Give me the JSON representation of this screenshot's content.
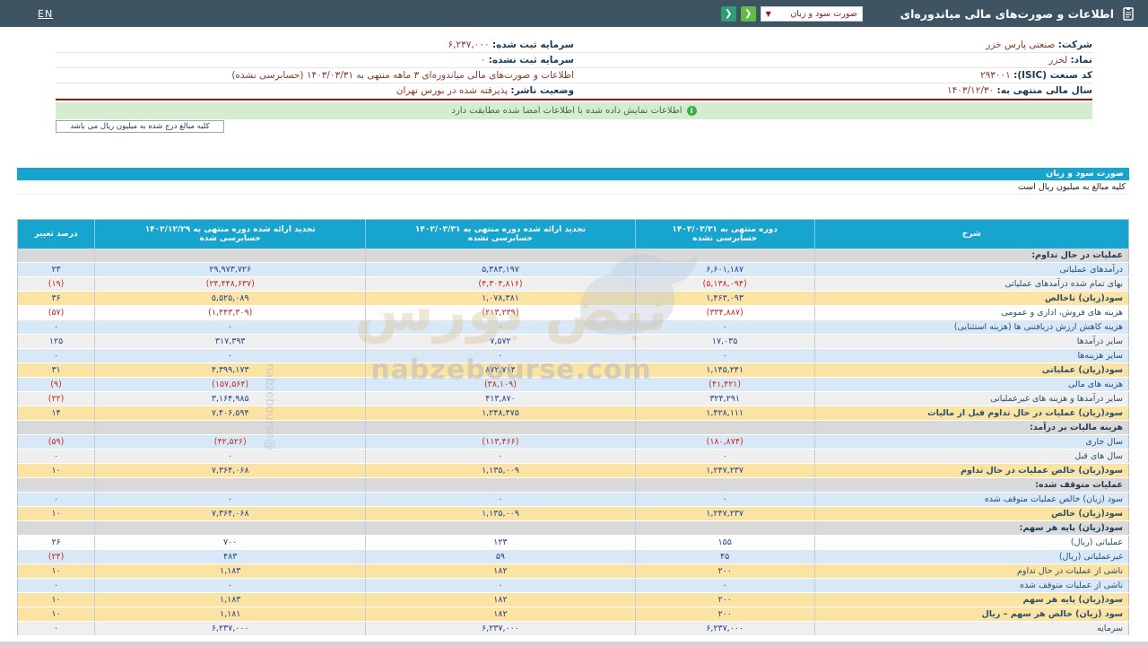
{
  "topbar": {
    "title": "اطلاعات و صورت‌های مالی میاندوره‌ای",
    "selector_value": "صورت سود و زیان",
    "en_label": "EN"
  },
  "company_info": {
    "right": [
      {
        "label": "شرکت:",
        "value": "صنعتی پارس خزر"
      },
      {
        "label": "نماد:",
        "value": "لخزر"
      },
      {
        "label": "کد صنعت (ISIC):",
        "value": "۲۹۳۰۰۱"
      },
      {
        "label": "سال مالی منتهی به:",
        "value": "۱۴۰۳/۱۲/۳۰"
      }
    ],
    "left": [
      {
        "label": "سرمایه ثبت شده:",
        "value": "۶,۲۳۷,۰۰۰"
      },
      {
        "label": "سرمایه ثبت نشده:",
        "value": "۰"
      },
      {
        "label": "",
        "value": "اطلاعات و صورت‌های مالی میاندوره‌ای ۳ ماهه منتهی به ۱۴۰۳/۰۳/۳۱ (حسابرسی نشده)"
      },
      {
        "label": "وضعیت ناشر:",
        "value": "پذیرفته شده در بورس تهران"
      }
    ]
  },
  "banner": {
    "text": "اطلاعات نمایش داده شده با اطلاعات امضا شده مطابقت دارد",
    "icon": "info-icon"
  },
  "amounts_box": "کلیه مبالغ درج شده به میلیون ریال می باشد",
  "statement": {
    "title": "صورت سود و زیان",
    "units_note": "کلیه مبالغ به میلیون ریال است"
  },
  "table": {
    "headers": {
      "description": "شرح",
      "current": {
        "line1": "دوره منتهی به ۱۴۰۳/۰۳/۳۱",
        "line2": "حسابرسی نشده"
      },
      "prior_period": {
        "line1": "تجدید ارائه شده دوره منتهی به ۱۴۰۲/۰۳/۳۱",
        "line2": "حسابرسی نشده"
      },
      "prior_year": {
        "line1": "تجدید ارائه شده دوره منتهی به ۱۴۰۲/۱۲/۲۹",
        "line2": "حسابرسی شده"
      },
      "change": "درصد تغییر"
    },
    "rows": [
      {
        "label": "عملیات در حال تداوم:",
        "cur": "",
        "prev": "",
        "year": "",
        "pct": "",
        "bg": "section"
      },
      {
        "label": "درآمدهای عملیاتی",
        "cur": "۶,۶۰۱,۱۸۷",
        "prev": "۵,۳۸۳,۱۹۷",
        "year": "۲۹,۹۷۳,۷۲۶",
        "pct": "۲۳",
        "bg": "blue"
      },
      {
        "label": "بهای تمام شده درآمدهای عملیاتی",
        "cur": "(۵,۱۳۸,۰۹۴)",
        "prev": "(۴,۳۰۴,۸۱۶)",
        "year": "(۲۴,۴۴۸,۶۳۷)",
        "pct": "(۱۹)",
        "bg": "gray"
      },
      {
        "label": "سود(زیان) ناخالص",
        "cur": "۱,۴۶۳,۰۹۳",
        "prev": "۱,۰۷۸,۳۸۱",
        "year": "۵,۵۲۵,۰۸۹",
        "pct": "۳۶",
        "bg": "orange",
        "bold": true
      },
      {
        "label": "هزینه های فروش، اداری و عمومی",
        "cur": "(۳۳۴,۸۸۷)",
        "prev": "(۲۱۳,۲۳۹)",
        "year": "(۱,۴۴۳,۳۰۹)",
        "pct": "(۵۷)",
        "bg": "white"
      },
      {
        "label": "هزینه کاهش ارزش دریافتنی ها (هزینه استثنایی)",
        "cur": "۰",
        "prev": "۰",
        "year": "۰",
        "pct": "۰",
        "bg": "blue"
      },
      {
        "label": "سایر درآمدها",
        "cur": "۱۷,۰۳۵",
        "prev": "۷,۵۷۲",
        "year": "۳۱۷,۳۹۳",
        "pct": "۱۲۵",
        "bg": "gray"
      },
      {
        "label": "سایر هزینه‌ها",
        "cur": "۰",
        "prev": "۰",
        "year": "۰",
        "pct": "۰",
        "bg": "blue"
      },
      {
        "label": "سود(زیان) عملیاتی",
        "cur": "۱,۱۴۵,۲۴۱",
        "prev": "۸۷۲,۷۱۴",
        "year": "۴,۳۹۹,۱۷۳",
        "pct": "۳۱",
        "bg": "orange",
        "bold": true
      },
      {
        "label": "هزینه های مالی",
        "cur": "(۴۱,۴۲۱)",
        "prev": "(۳۸,۱۰۹)",
        "year": "(۱۵۷,۵۶۴)",
        "pct": "(۹)",
        "bg": "blue"
      },
      {
        "label": "سایر درآمدها و هزینه های غیرعملیاتی",
        "cur": "۳۲۴,۲۹۱",
        "prev": "۴۱۳,۸۷۰",
        "year": "۳,۱۶۴,۹۸۵",
        "pct": "(۲۲)",
        "bg": "gray"
      },
      {
        "label": "سود(زیان) عملیات در حال تداوم قبل از مالیات",
        "cur": "۱,۴۲۸,۱۱۱",
        "prev": "۱,۲۴۸,۴۷۵",
        "year": "۷,۴۰۶,۵۹۴",
        "pct": "۱۴",
        "bg": "orange",
        "bold": true
      },
      {
        "label": "هزینه مالیات بر درآمد:",
        "cur": "",
        "prev": "",
        "year": "",
        "pct": "",
        "bg": "section"
      },
      {
        "label": "سال جاری",
        "cur": "(۱۸۰,۸۷۴)",
        "prev": "(۱۱۳,۴۶۶)",
        "year": "(۴۲,۵۲۶)",
        "pct": "(۵۹)",
        "bg": "blue"
      },
      {
        "label": "سال های قبل",
        "cur": "۰",
        "prev": "۰",
        "year": "۰",
        "pct": "۰",
        "bg": "gray"
      },
      {
        "label": "سود(زیان) خالص عملیات در حال تداوم",
        "cur": "۱,۲۴۷,۲۳۷",
        "prev": "۱,۱۳۵,۰۰۹",
        "year": "۷,۳۶۴,۰۶۸",
        "pct": "۱۰",
        "bg": "orange",
        "bold": true
      },
      {
        "label": "عملیات متوقف شده:",
        "cur": "",
        "prev": "",
        "year": "",
        "pct": "",
        "bg": "section"
      },
      {
        "label": "سود (زیان) خالص عملیات متوقف شده",
        "cur": "۰",
        "prev": "۰",
        "year": "۰",
        "pct": "۰",
        "bg": "blue"
      },
      {
        "label": "سود(زیان) خالص",
        "cur": "۱,۲۴۷,۲۳۷",
        "prev": "۱,۱۳۵,۰۰۹",
        "year": "۷,۳۶۴,۰۶۸",
        "pct": "۱۰",
        "bg": "orange",
        "bold": true
      },
      {
        "label": "سود(زیان) پایه هر سهم:",
        "cur": "",
        "prev": "",
        "year": "",
        "pct": "",
        "bg": "section"
      },
      {
        "label": "عملیاتی (ریال)",
        "cur": "۱۵۵",
        "prev": "۱۲۳",
        "year": "۷۰۰",
        "pct": "۲۶",
        "bg": "white"
      },
      {
        "label": "غیرعملیاتی (ریال)",
        "cur": "۴۵",
        "prev": "۵۹",
        "year": "۴۸۳",
        "pct": "(۲۴)",
        "bg": "blue"
      },
      {
        "label": "ناشی از عملیات در حال تداوم",
        "cur": "۲۰۰",
        "prev": "۱۸۲",
        "year": "۱,۱۸۳",
        "pct": "۱۰",
        "bg": "orange"
      },
      {
        "label": "ناشی از عملیات متوقف شده",
        "cur": "۰",
        "prev": "۰",
        "year": "۰",
        "pct": "۰",
        "bg": "blue"
      },
      {
        "label": "سود(زیان) پایه هر سهم",
        "cur": "۲۰۰",
        "prev": "۱۸۲",
        "year": "۱,۱۸۳",
        "pct": "۱۰",
        "bg": "orange",
        "bold": true
      },
      {
        "label": "سود (زیان) خالص هر سهم – ریال",
        "cur": "۲۰۰",
        "prev": "۱۸۲",
        "year": "۱,۱۸۱",
        "pct": "۱۰",
        "bg": "orange",
        "bold": true
      },
      {
        "label": "سرمایه",
        "cur": "۶,۲۳۷,۰۰۰",
        "prev": "۶,۲۳۷,۰۰۰",
        "year": "۶,۲۳۷,۰۰۰",
        "pct": "۰",
        "bg": "gray"
      }
    ]
  },
  "watermark": {
    "fa": "نبض بورس",
    "en": "nabzebourse.com",
    "handle": "@nabzebourse"
  },
  "colors": {
    "accent_teal": "#17a4cf",
    "topbar": "#3e5463",
    "row_highlight": "#fbe3a3",
    "row_blue": "#d8e8f7",
    "row_gray": "#efeff0",
    "section_row": "#d9d9d9",
    "negative": "#c42b1c",
    "positive": "#23418c",
    "banner_green": "#d5ecd0",
    "red_line": "#8a1f1f",
    "button_green": "#63bb46"
  }
}
